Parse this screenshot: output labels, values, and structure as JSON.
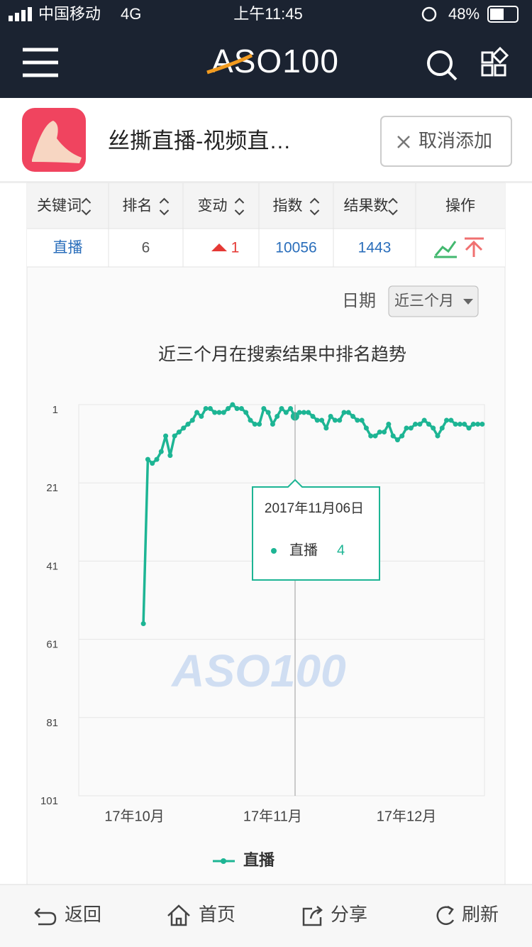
{
  "status_bar": {
    "carrier": "中国移动",
    "network": "4G",
    "time": "上午11:45",
    "battery": "48%"
  },
  "header": {
    "logo": "ASO100"
  },
  "app": {
    "name": "丝撕直播-视频直…",
    "button": "取消添加"
  },
  "table": {
    "headers": [
      "关键词",
      "排名",
      "变动",
      "指数",
      "结果数",
      "操作"
    ],
    "rows": [
      [
        "直播",
        "6",
        "1",
        "10056",
        "1443"
      ]
    ]
  },
  "filter": {
    "label": "日期",
    "selected": "近三个月"
  },
  "chart_data": {
    "type": "line",
    "title": "近三个月在搜索结果中排名趋势",
    "categories": [
      null,
      null,
      null,
      null,
      null,
      null,
      null,
      null,
      null,
      null,
      null,
      null,
      "17年10月",
      null,
      null,
      null,
      null,
      null,
      null,
      null,
      null,
      null,
      null,
      null,
      null,
      null,
      null,
      null,
      null,
      null,
      null,
      null,
      null,
      null,
      null,
      null,
      null,
      null,
      null,
      null,
      null,
      null,
      null,
      "17年11月",
      null,
      null,
      null,
      null,
      null,
      null,
      null,
      null,
      null,
      null,
      null,
      null,
      null,
      null,
      null,
      null,
      null,
      null,
      null,
      null,
      null,
      null,
      null,
      null,
      null,
      null,
      null,
      null,
      null,
      "17年12月",
      null,
      null,
      null,
      null,
      null,
      null,
      null,
      null,
      null,
      null,
      null,
      null,
      null,
      null,
      null,
      null,
      null
    ],
    "series": [
      {
        "name": "直播",
        "color": "#1db594",
        "values": [
          null,
          null,
          null,
          null,
          null,
          null,
          null,
          null,
          null,
          null,
          null,
          null,
          null,
          null,
          57,
          15,
          16,
          15,
          13,
          9,
          14,
          9,
          8,
          7,
          6,
          5,
          3,
          4,
          2,
          2,
          3,
          3,
          3,
          2,
          1,
          2,
          2,
          3,
          5,
          6,
          6,
          2,
          3,
          6,
          4,
          2,
          3,
          2,
          4,
          3,
          3,
          3,
          4,
          5,
          5,
          7,
          4,
          5,
          5,
          3,
          3,
          4,
          5,
          5,
          7,
          9,
          9,
          8,
          8,
          6,
          9,
          10,
          9,
          7,
          7,
          6,
          6,
          5,
          6,
          7,
          9,
          7,
          5,
          5,
          6,
          6,
          6,
          7,
          6,
          6,
          6
        ]
      }
    ],
    "ylim": [
      1,
      101
    ],
    "yticks": [
      1,
      21,
      41,
      61,
      81,
      101
    ],
    "y_inverted": true,
    "grid": true,
    "legend": "bottom",
    "tooltip": {
      "title": "2017年11月06日"
    },
    "watermark": "ASO100"
  },
  "nav": [
    "返回",
    "首页",
    "分享",
    "刷新"
  ]
}
